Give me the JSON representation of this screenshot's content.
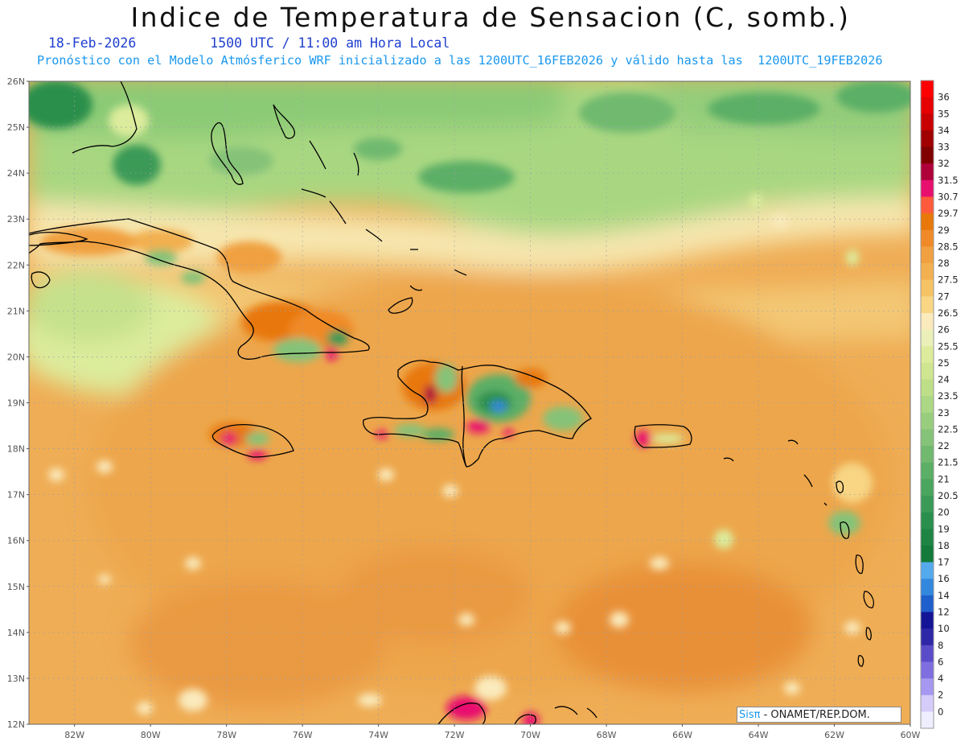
{
  "header": {
    "title": "Indice de Temperatura de Sensacion (C, somb.)",
    "date": "18-Feb-2026",
    "time": "1500 UTC / 11:00 am Hora Local",
    "subtitle": "Pronóstico con el Modelo Atmósferico WRF inicializado a las 1200UTC_16FEB2026 y válido hasta las  1200UTC_19FEB2026"
  },
  "map": {
    "lat_labels": [
      "26N",
      "25N",
      "24N",
      "23N",
      "22N",
      "21N",
      "20N",
      "19N",
      "18N",
      "17N",
      "16N",
      "15N",
      "14N",
      "13N",
      "12N"
    ],
    "lon_labels": [
      "82W",
      "80W",
      "78W",
      "76W",
      "74W",
      "72W",
      "70W",
      "68W",
      "66W",
      "64W",
      "62W",
      "60W"
    ],
    "lat_range": [
      12,
      26
    ],
    "lon_range": [
      -83.2,
      -60
    ],
    "grid": "dotted"
  },
  "legend": {
    "levels": [
      {
        "label": "36",
        "color": "#ff0000"
      },
      {
        "label": "35",
        "color": "#e60000"
      },
      {
        "label": "34",
        "color": "#c80000"
      },
      {
        "label": "33",
        "color": "#a00000"
      },
      {
        "label": "32",
        "color": "#800000"
      },
      {
        "label": "31.5",
        "color": "#b0003a"
      },
      {
        "label": "30.7",
        "color": "#e8106e"
      },
      {
        "label": "29.7",
        "color": "#ff5a3c"
      },
      {
        "label": "29",
        "color": "#e8780a"
      },
      {
        "label": "28.5",
        "color": "#f08a28"
      },
      {
        "label": "28",
        "color": "#f0a040"
      },
      {
        "label": "27.5",
        "color": "#f2b050"
      },
      {
        "label": "27",
        "color": "#f5c265"
      },
      {
        "label": "26.5",
        "color": "#f8d684"
      },
      {
        "label": "26",
        "color": "#faeabc"
      },
      {
        "label": "25.5",
        "color": "#eaf0b8"
      },
      {
        "label": "25",
        "color": "#dcec9c"
      },
      {
        "label": "24",
        "color": "#cfe590"
      },
      {
        "label": "23.5",
        "color": "#bedf88"
      },
      {
        "label": "23",
        "color": "#acd784"
      },
      {
        "label": "22.5",
        "color": "#98cd7e"
      },
      {
        "label": "22",
        "color": "#85c378"
      },
      {
        "label": "21.5",
        "color": "#70b96e"
      },
      {
        "label": "21",
        "color": "#5caf66"
      },
      {
        "label": "20.5",
        "color": "#4aa55e"
      },
      {
        "label": "20",
        "color": "#3a9a56"
      },
      {
        "label": "19",
        "color": "#2a8f4c"
      },
      {
        "label": "18",
        "color": "#1e8444"
      },
      {
        "label": "17",
        "color": "#137a3c"
      },
      {
        "label": "16",
        "color": "#55aaee"
      },
      {
        "label": "14",
        "color": "#3388dd"
      },
      {
        "label": "12",
        "color": "#1f5fcc"
      },
      {
        "label": "10",
        "color": "#141496"
      },
      {
        "label": "8",
        "color": "#2e28a8"
      },
      {
        "label": "6",
        "color": "#5a4cc8"
      },
      {
        "label": "4",
        "color": "#7e6ee0"
      },
      {
        "label": "2",
        "color": "#a698f0"
      },
      {
        "label": "0",
        "color": "#d6ccfa"
      },
      {
        "label": "",
        "color": "#eeeeff"
      }
    ]
  },
  "credit": {
    "brand": "Sisπ",
    "text": " - ONAMET/REP.DOM."
  }
}
